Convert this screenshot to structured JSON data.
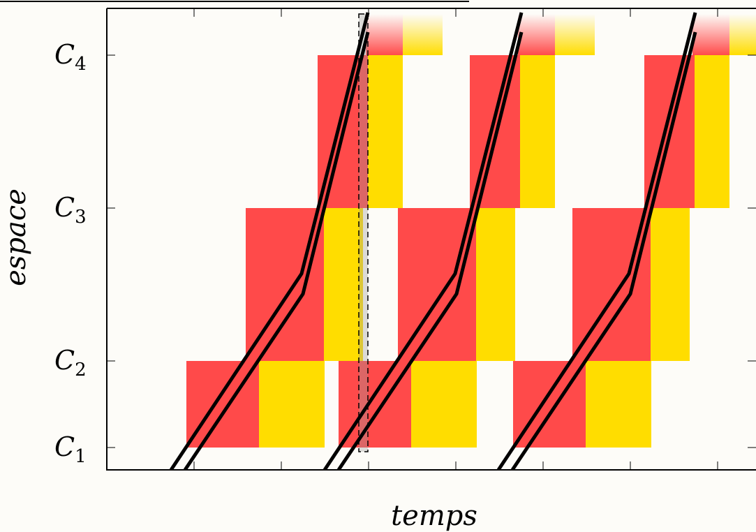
{
  "diagram": {
    "y_axis_label": "espace",
    "x_axis_label": "temps",
    "y_ticks": [
      {
        "base": "C",
        "sub": "4"
      },
      {
        "base": "C",
        "sub": "3"
      },
      {
        "base": "C",
        "sub": "2"
      },
      {
        "base": "C",
        "sub": "1"
      }
    ],
    "colors": {
      "red_phase": "#ff4a4a",
      "yellow_phase": "#ffdd00",
      "trajectory": "#000000",
      "background": "#fdfcf8"
    }
  }
}
